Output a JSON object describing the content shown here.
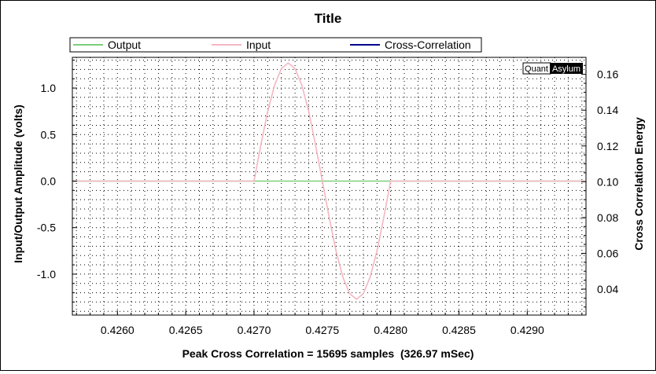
{
  "chart_data": {
    "type": "line",
    "title": "Title",
    "xlabel": "Peak Cross Correlation = 15695 samples  (326.97 mSec)",
    "ylabel": "Input/Output Amplitude (volts)",
    "y2label": "Cross Correlation Energy",
    "xlim": [
      0.42567,
      0.42943
    ],
    "ylim": [
      -1.44,
      1.33
    ],
    "y2lim": [
      0.0255,
      0.1695
    ],
    "x_ticks": [
      0.426,
      0.4265,
      0.427,
      0.4275,
      0.428,
      0.4285,
      0.429
    ],
    "x_tick_labels": [
      "0.4260",
      "0.4265",
      "0.4270",
      "0.4275",
      "0.4280",
      "0.4285",
      "0.4290"
    ],
    "y_ticks": [
      1.0,
      0.5,
      0.0,
      -0.5,
      -1.0
    ],
    "y_tick_labels": [
      "1.0",
      "0.5",
      "0.0",
      "-0.5",
      "-1.0"
    ],
    "y2_ticks": [
      0.16,
      0.14,
      0.12,
      0.1,
      0.08,
      0.06,
      0.04
    ],
    "y2_tick_labels": [
      "0.16",
      "0.14",
      "0.12",
      "0.10",
      "0.08",
      "0.06",
      "0.04"
    ],
    "grid": true,
    "legend_position": "top",
    "series": [
      {
        "name": "Output",
        "color": "#7ccf7c",
        "axis": "left",
        "x": [
          0.42567,
          0.42943
        ],
        "y": [
          0.0,
          0.0
        ]
      },
      {
        "name": "Input",
        "color": "#f4b6c2",
        "axis": "left",
        "x": [
          0.42567,
          0.427,
          0.42705,
          0.4271,
          0.42715,
          0.4272,
          0.42725,
          0.4273,
          0.42735,
          0.4274,
          0.42745,
          0.4275,
          0.42755,
          0.4276,
          0.42765,
          0.4277,
          0.42775,
          0.4278,
          0.42785,
          0.4279,
          0.42795,
          0.428,
          0.42943
        ],
        "y": [
          0.0,
          0.0,
          0.39,
          0.75,
          1.03,
          1.21,
          1.27,
          1.21,
          1.03,
          0.75,
          0.39,
          0.0,
          -0.39,
          -0.75,
          -1.03,
          -1.21,
          -1.27,
          -1.21,
          -1.03,
          -0.75,
          -0.39,
          0.0,
          0.0
        ]
      },
      {
        "name": "Cross-Correlation",
        "color": "#00008b",
        "axis": "right",
        "x": [],
        "y": []
      }
    ]
  },
  "watermark": {
    "left": "Quant",
    "right": "Asylum"
  }
}
